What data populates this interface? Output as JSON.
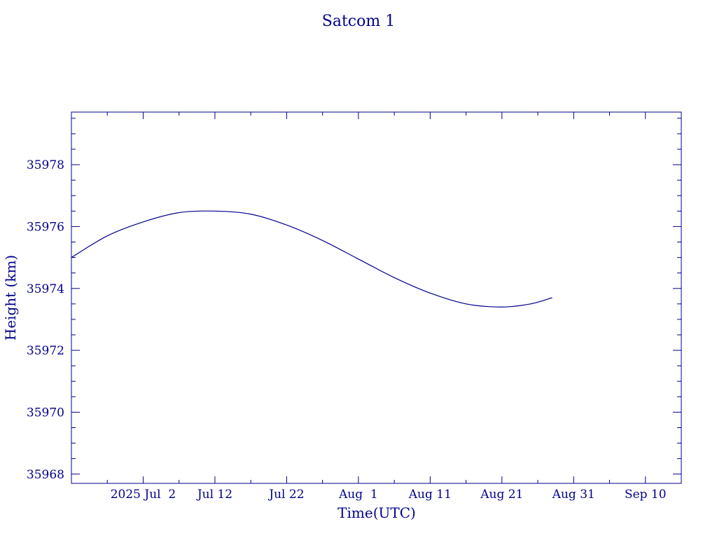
{
  "chart_data": {
    "type": "line",
    "title": "Satcom 1",
    "xlabel": "Time(UTC)",
    "ylabel": "Height (km)",
    "color": "#00008b",
    "xlim": [
      "2025-06-22",
      "2025-09-15"
    ],
    "ylim": [
      35967.7,
      35979.7
    ],
    "x_ticks": [
      {
        "date": "2025-07-02",
        "label": "2025 Jul  2"
      },
      {
        "date": "2025-07-12",
        "label": "Jul 12"
      },
      {
        "date": "2025-07-22",
        "label": "Jul 22"
      },
      {
        "date": "2025-08-01",
        "label": "Aug  1"
      },
      {
        "date": "2025-08-11",
        "label": "Aug 11"
      },
      {
        "date": "2025-08-21",
        "label": "Aug 21"
      },
      {
        "date": "2025-08-31",
        "label": "Aug 31"
      },
      {
        "date": "2025-09-10",
        "label": "Sep 10"
      }
    ],
    "y_ticks": [
      35968,
      35970,
      35972,
      35974,
      35976,
      35978
    ],
    "grid": false,
    "series": [
      {
        "x": [
          "2025-06-22",
          "2025-06-27",
          "2025-07-02",
          "2025-07-07",
          "2025-07-12",
          "2025-07-17",
          "2025-07-22",
          "2025-07-27",
          "2025-08-01",
          "2025-08-06",
          "2025-08-11",
          "2025-08-16",
          "2025-08-21",
          "2025-08-25",
          "2025-08-28"
        ],
        "y": [
          35975.0,
          35975.7,
          35976.15,
          35976.45,
          35976.5,
          35976.4,
          35976.05,
          35975.55,
          35974.95,
          35974.35,
          35973.85,
          35973.5,
          35973.4,
          35973.5,
          35973.7
        ]
      }
    ]
  }
}
